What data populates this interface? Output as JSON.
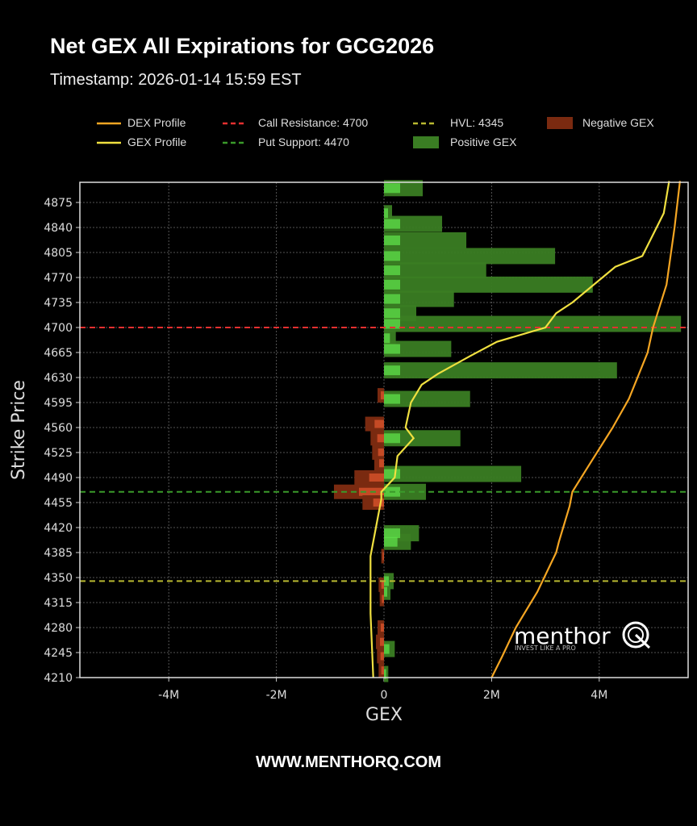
{
  "header": {
    "title": "Net GEX All Expirations for GCG2026",
    "subtitle": "Timestamp: 2026-01-14 15:59 EST"
  },
  "legend": [
    {
      "label": "DEX Profile",
      "style": "line",
      "color": "#f5a623"
    },
    {
      "label": "GEX Profile",
      "style": "line",
      "color": "#f0e040"
    },
    {
      "label": "Call Resistance: 4700",
      "style": "dashed",
      "color": "#e53030"
    },
    {
      "label": "Put Support: 4470",
      "style": "dashed",
      "color": "#3a9a2a"
    },
    {
      "label": "HVL: 4345",
      "style": "dashed",
      "color": "#b8b830"
    },
    {
      "label": "Positive GEX",
      "style": "patch",
      "color": "#3a7d23"
    },
    {
      "label": "Negative GEX",
      "style": "patch",
      "color": "#7a2a10"
    }
  ],
  "footer": "WWW.MENTHORQ.COM",
  "watermark": {
    "brand": "menthor",
    "mark": "Q",
    "tagline": "INVEST LIKE A PRO"
  },
  "chart_data": {
    "type": "bar",
    "orientation": "horizontal",
    "title": "Net GEX All Expirations for GCG2026",
    "subtitle": "Timestamp: 2026-01-14 15:59 EST",
    "xlabel": "GEX",
    "ylabel": "Strike Price",
    "xlim": [
      -5.7,
      5.6
    ],
    "ylim": [
      4210,
      4905
    ],
    "x_ticks": [
      "-4M",
      "-2M",
      "0",
      "2M",
      "4M"
    ],
    "y_ticks": [
      4875,
      4840,
      4805,
      4770,
      4735,
      4700,
      4665,
      4630,
      4595,
      4560,
      4525,
      4490,
      4455,
      4420,
      4385,
      4350,
      4315,
      4280,
      4245,
      4210
    ],
    "grid": true,
    "legend_position": "top",
    "levels": {
      "call_resistance": 4700,
      "put_support": 4470,
      "hvl": 4345
    },
    "series": [
      {
        "name": "Positive GEX (M)",
        "points": [
          [
            4895,
            0.72
          ],
          [
            4860,
            0.15
          ],
          [
            4845,
            1.08
          ],
          [
            4822,
            1.53
          ],
          [
            4800,
            3.18
          ],
          [
            4780,
            1.9
          ],
          [
            4760,
            3.88
          ],
          [
            4740,
            1.3
          ],
          [
            4720,
            0.6
          ],
          [
            4705,
            5.52
          ],
          [
            4685,
            0.22
          ],
          [
            4670,
            1.25
          ],
          [
            4640,
            4.33
          ],
          [
            4600,
            1.6
          ],
          [
            4545,
            1.42
          ],
          [
            4495,
            2.55
          ],
          [
            4470,
            0.78
          ],
          [
            4412,
            0.65
          ],
          [
            4400,
            0.5
          ],
          [
            4345,
            0.18
          ],
          [
            4330,
            0.12
          ],
          [
            4250,
            0.2
          ],
          [
            4215,
            0.08
          ]
        ]
      },
      {
        "name": "Negative GEX (M)",
        "points": [
          [
            4605,
            -0.12
          ],
          [
            4565,
            -0.35
          ],
          [
            4545,
            -0.25
          ],
          [
            4525,
            -0.22
          ],
          [
            4510,
            -0.18
          ],
          [
            4490,
            -0.55
          ],
          [
            4470,
            -0.93
          ],
          [
            4455,
            -0.4
          ],
          [
            4380,
            -0.05
          ],
          [
            4340,
            -0.1
          ],
          [
            4320,
            -0.08
          ],
          [
            4280,
            -0.12
          ],
          [
            4260,
            -0.15
          ],
          [
            4240,
            -0.13
          ],
          [
            4220,
            -0.1
          ]
        ]
      },
      {
        "name": "GEX Profile (M)",
        "points": [
          [
            4210,
            -0.2
          ],
          [
            4300,
            -0.25
          ],
          [
            4380,
            -0.25
          ],
          [
            4420,
            -0.15
          ],
          [
            4460,
            -0.05
          ],
          [
            4470,
            -0.05
          ],
          [
            4490,
            0.2
          ],
          [
            4520,
            0.25
          ],
          [
            4545,
            0.55
          ],
          [
            4560,
            0.4
          ],
          [
            4595,
            0.5
          ],
          [
            4620,
            0.7
          ],
          [
            4635,
            1.0
          ],
          [
            4660,
            1.6
          ],
          [
            4680,
            2.1
          ],
          [
            4700,
            3.0
          ],
          [
            4720,
            3.2
          ],
          [
            4735,
            3.5
          ],
          [
            4760,
            3.9
          ],
          [
            4785,
            4.3
          ],
          [
            4800,
            4.8
          ],
          [
            4830,
            5.0
          ],
          [
            4860,
            5.2
          ],
          [
            4905,
            5.3
          ]
        ]
      },
      {
        "name": "DEX Profile (M)",
        "points": [
          [
            4210,
            2.0
          ],
          [
            4240,
            2.2
          ],
          [
            4280,
            2.45
          ],
          [
            4330,
            2.85
          ],
          [
            4385,
            3.2
          ],
          [
            4400,
            3.25
          ],
          [
            4450,
            3.45
          ],
          [
            4470,
            3.5
          ],
          [
            4500,
            3.75
          ],
          [
            4560,
            4.25
          ],
          [
            4600,
            4.55
          ],
          [
            4665,
            4.9
          ],
          [
            4700,
            5.0
          ],
          [
            4760,
            5.25
          ],
          [
            4840,
            5.4
          ],
          [
            4905,
            5.5
          ]
        ]
      }
    ]
  }
}
